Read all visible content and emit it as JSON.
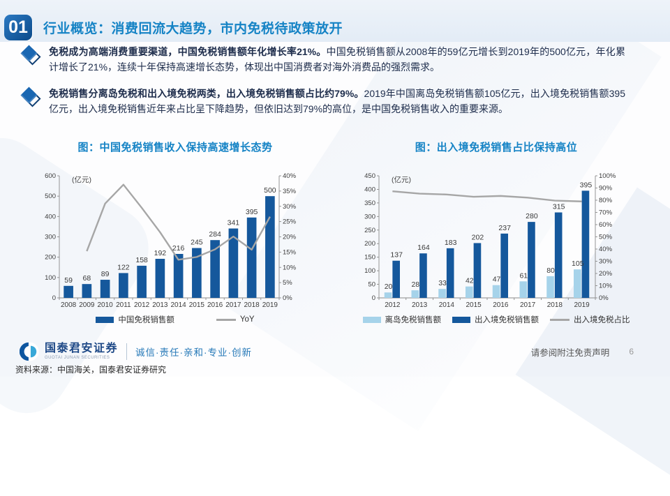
{
  "header": {
    "badge": "01",
    "title": "行业概览：消费回流大趋势，市内免税待政策放开"
  },
  "bullets": [
    {
      "bold": "免税成为高端消费重要渠道，中国免税销售额年化增长率21%。",
      "text": "中国免税销售额从2008年的59亿元增长到2019年的500亿元，年化累计增长了21%，连续十年保持高速增长态势，体现出中国消费者对海外消费品的强烈需求。"
    },
    {
      "bold": "免税销售分离岛免税和出入境免税两类，出入境免税销售额占比约79%。",
      "text": "2019年中国离岛免税销售额105亿元，出入境免税销售额395亿元，出入境免税销售近年来占比呈下降趋势，但依旧达到79%的高位，是中国免税销售收入的重要来源。"
    }
  ],
  "chart_data": [
    {
      "type": "bar+line",
      "title": "图：中国免税销售收入保持高速增长态势",
      "categories": [
        "2008",
        "2009",
        "2010",
        "2011",
        "2012",
        "2013",
        "2014",
        "2015",
        "2016",
        "2017",
        "2018",
        "2019"
      ],
      "series": [
        {
          "name": "中国免税销售额",
          "type": "bar",
          "color": "#15589c",
          "values": [
            59,
            68,
            89,
            122,
            158,
            192,
            216,
            245,
            284,
            341,
            395,
            500
          ]
        },
        {
          "name": "YoY",
          "type": "line",
          "axis": "right",
          "color": "#a6a6a6",
          "values": [
            null,
            15.3,
            30.9,
            37.1,
            29.5,
            21.5,
            12.5,
            13.4,
            15.9,
            20.1,
            15.8,
            26.6
          ]
        }
      ],
      "left_axis": {
        "min": 0,
        "max": 600,
        "step": 100,
        "unit": "(亿元)"
      },
      "right_axis": {
        "min": 0,
        "max": 40,
        "step": 5,
        "suffix": "%"
      },
      "legend_position": "bottom",
      "gridlines": false
    },
    {
      "type": "grouped-bar+line",
      "title": "图：出入境免税销售占比保持高位",
      "categories": [
        "2012",
        "2013",
        "2014",
        "2015",
        "2016",
        "2017",
        "2018",
        "2019"
      ],
      "series": [
        {
          "name": "离岛免税销售额",
          "type": "bar",
          "color": "#a6d3ea",
          "values": [
            20,
            28,
            33,
            42,
            47,
            61,
            80,
            105
          ]
        },
        {
          "name": "出入境免税销售额",
          "type": "bar",
          "color": "#15589c",
          "values": [
            137,
            164,
            183,
            202,
            237,
            280,
            315,
            395
          ]
        },
        {
          "name": "出入境免税占比",
          "type": "line",
          "axis": "right",
          "color": "#a6a6a6",
          "values": [
            87.3,
            85.4,
            84.7,
            82.8,
            83.5,
            82.1,
            79.7,
            79.0
          ]
        }
      ],
      "left_axis": {
        "min": 0,
        "max": 450,
        "step": 50,
        "unit": "(亿元)"
      },
      "right_axis": {
        "min": 0,
        "max": 100,
        "step": 10,
        "suffix": "%"
      },
      "legend_position": "bottom",
      "gridlines": false
    }
  ],
  "footer": {
    "logo_cn": "国泰君安证券",
    "logo_en": "GUOTAI JUNAN SECURITIES",
    "tagline": "诚信·责任·亲和·专业·创新",
    "disclaimer": "请参阅附注免责声明",
    "page_number": "6",
    "source": "资料来源：中国海关，国泰君安证券研究"
  },
  "style": {
    "accent_blue": "#1583c5",
    "bar_dark": "#15589c",
    "bar_light": "#a6d3ea",
    "line_gray": "#a6a6a6",
    "text_navy": "#1d2c4b",
    "badge_gradient": [
      "#2b79c2",
      "#0b4a8a"
    ]
  }
}
